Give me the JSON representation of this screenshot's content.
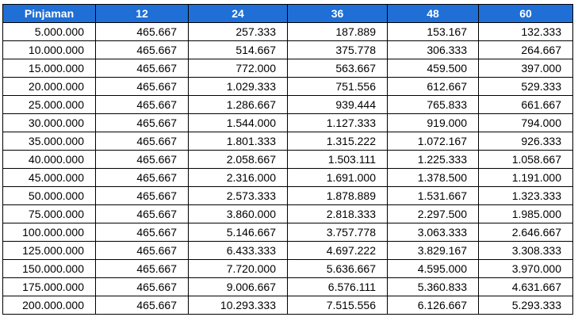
{
  "table": {
    "header": [
      "Pinjaman",
      "12",
      "24",
      "36",
      "48",
      "60"
    ],
    "rows": [
      [
        "5.000.000",
        "465.667",
        "257.333",
        "187.889",
        "153.167",
        "132.333"
      ],
      [
        "10.000.000",
        "465.667",
        "514.667",
        "375.778",
        "306.333",
        "264.667"
      ],
      [
        "15.000.000",
        "465.667",
        "772.000",
        "563.667",
        "459.500",
        "397.000"
      ],
      [
        "20.000.000",
        "465.667",
        "1.029.333",
        "751.556",
        "612.667",
        "529.333"
      ],
      [
        "25.000.000",
        "465.667",
        "1.286.667",
        "939.444",
        "765.833",
        "661.667"
      ],
      [
        "30.000.000",
        "465.667",
        "1.544.000",
        "1.127.333",
        "919.000",
        "794.000"
      ],
      [
        "35.000.000",
        "465.667",
        "1.801.333",
        "1.315.222",
        "1.072.167",
        "926.333"
      ],
      [
        "40.000.000",
        "465.667",
        "2.058.667",
        "1.503.111",
        "1.225.333",
        "1.058.667"
      ],
      [
        "45.000.000",
        "465.667",
        "2.316.000",
        "1.691.000",
        "1.378.500",
        "1.191.000"
      ],
      [
        "50.000.000",
        "465.667",
        "2.573.333",
        "1.878.889",
        "1.531.667",
        "1.323.333"
      ],
      [
        "75.000.000",
        "465.667",
        "3.860.000",
        "2.818.333",
        "2.297.500",
        "1.985.000"
      ],
      [
        "100.000.000",
        "465.667",
        "5.146.667",
        "3.757.778",
        "3.063.333",
        "2.646.667"
      ],
      [
        "125.000.000",
        "465.667",
        "6.433.333",
        "4.697.222",
        "3.829.167",
        "3.308.333"
      ],
      [
        "150.000.000",
        "465.667",
        "7.720.000",
        "5.636.667",
        "4.595.000",
        "3.970.000"
      ],
      [
        "175.000.000",
        "465.667",
        "9.006.667",
        "6.576.111",
        "5.360.833",
        "4.631.667"
      ],
      [
        "200.000.000",
        "465.667",
        "10.293.333",
        "7.515.556",
        "6.126.667",
        "5.293.333"
      ]
    ]
  }
}
